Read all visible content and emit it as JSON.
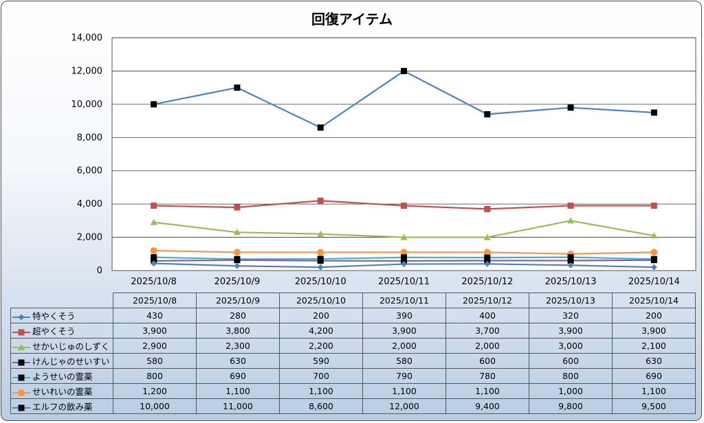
{
  "chart_data": {
    "type": "line",
    "title": "回復アイテム",
    "categories": [
      "2025/10/8",
      "2025/10/9",
      "2025/10/10",
      "2025/10/11",
      "2025/10/12",
      "2025/10/13",
      "2025/10/14"
    ],
    "ylim": [
      0,
      14000
    ],
    "yticks": [
      "0",
      "2,000",
      "4,000",
      "6,000",
      "8,000",
      "10,000",
      "12,000",
      "14,000"
    ],
    "grid": true,
    "legend": "data-table",
    "series": [
      {
        "name": "特やくそう",
        "values": [
          430,
          280,
          200,
          390,
          400,
          320,
          200
        ],
        "labels": [
          "430",
          "280",
          "200",
          "390",
          "400",
          "320",
          "200"
        ],
        "color": "#4f81bd",
        "marker": "diamond"
      },
      {
        "name": "超やくそう",
        "values": [
          3900,
          3800,
          4200,
          3900,
          3700,
          3900,
          3900
        ],
        "labels": [
          "3,900",
          "3,800",
          "4,200",
          "3,900",
          "3,700",
          "3,900",
          "3,900"
        ],
        "color": "#c0504d",
        "marker": "square"
      },
      {
        "name": "せかいじゅのしずく",
        "values": [
          2900,
          2300,
          2200,
          2000,
          2000,
          3000,
          2100
        ],
        "labels": [
          "2,900",
          "2,300",
          "2,200",
          "2,000",
          "2,000",
          "3,000",
          "2,100"
        ],
        "color": "#9bbb59",
        "marker": "triangle"
      },
      {
        "name": "けんじゃのせいすい",
        "values": [
          580,
          630,
          590,
          580,
          600,
          600,
          630
        ],
        "labels": [
          "580",
          "630",
          "590",
          "580",
          "600",
          "600",
          "630"
        ],
        "color": "#8064a2",
        "marker": "blacksquare"
      },
      {
        "name": "ようせいの霊薬",
        "values": [
          800,
          690,
          700,
          790,
          780,
          800,
          690
        ],
        "labels": [
          "800",
          "690",
          "700",
          "790",
          "780",
          "800",
          "690"
        ],
        "color": "#4bacc6",
        "marker": "blacksquare"
      },
      {
        "name": "せいれいの霊薬",
        "values": [
          1200,
          1100,
          1100,
          1100,
          1100,
          1000,
          1100
        ],
        "labels": [
          "1,200",
          "1,100",
          "1,100",
          "1,100",
          "1,100",
          "1,000",
          "1,100"
        ],
        "color": "#f79646",
        "marker": "circle"
      },
      {
        "name": "エルフの飲み薬",
        "values": [
          10000,
          11000,
          8600,
          12000,
          9400,
          9800,
          9500
        ],
        "labels": [
          "10,000",
          "11,000",
          "8,600",
          "12,000",
          "9,400",
          "9,800",
          "9,500"
        ],
        "color": "#4f81bd",
        "marker": "blacksquare"
      }
    ]
  }
}
